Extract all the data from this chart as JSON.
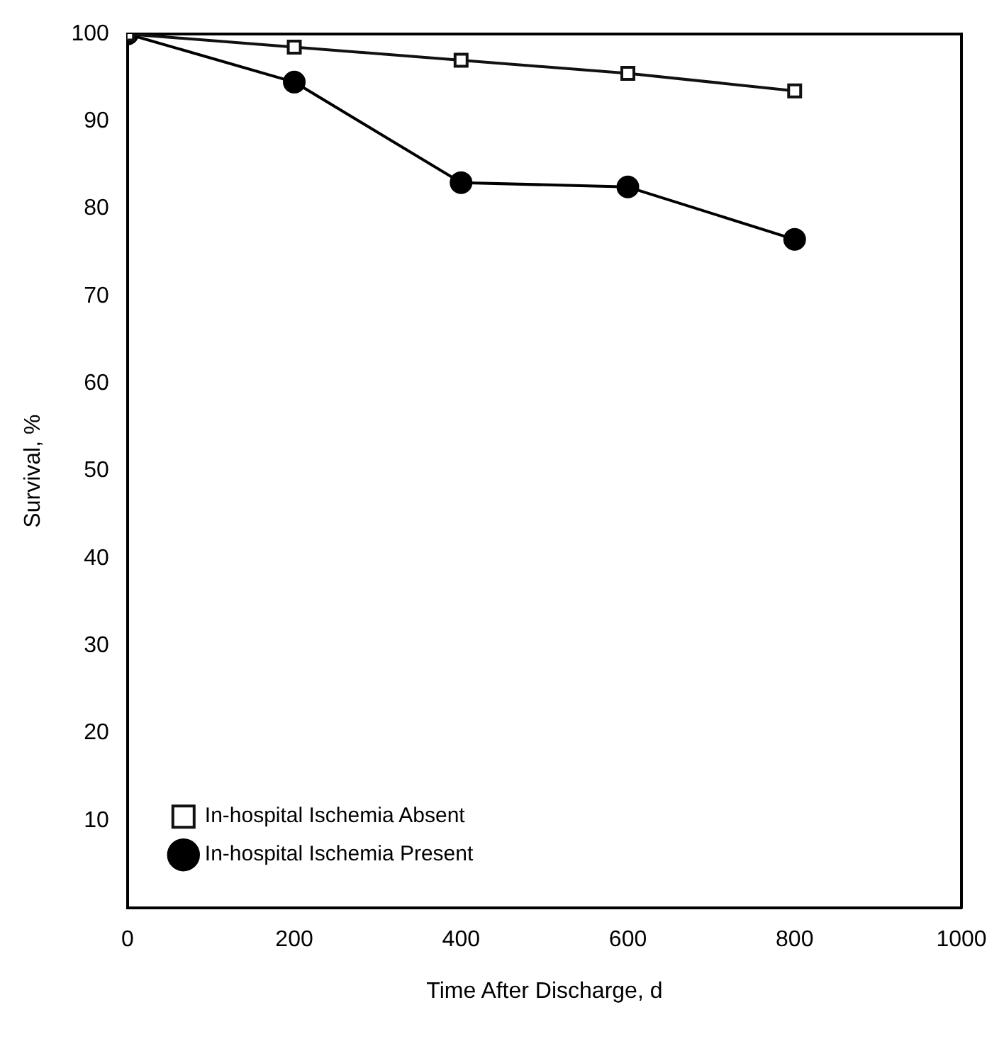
{
  "chart_data": {
    "type": "line",
    "xlabel": "Time After Discharge, d",
    "ylabel": "Survival, %",
    "x": [
      0,
      200,
      400,
      600,
      800
    ],
    "series": [
      {
        "name": "In-hospital Ischemia Absent",
        "color": "#111111",
        "marker": "square",
        "values": [
          100,
          98.5,
          97,
          95.5,
          93.5
        ]
      },
      {
        "name": "In-hospital Ischemia Present",
        "color": "#000000",
        "marker": "circle",
        "values": [
          100,
          94.5,
          83,
          82.5,
          76.5
        ]
      }
    ],
    "xlim": [
      0,
      1000
    ],
    "xticks": [
      0,
      200,
      400,
      600,
      800,
      1000
    ],
    "ylim": [
      0,
      100
    ],
    "yticks": [
      10,
      20,
      30,
      40,
      50,
      60,
      70,
      80,
      90,
      100
    ],
    "grid": false,
    "legend": "bottom left",
    "line_style": "solid"
  }
}
